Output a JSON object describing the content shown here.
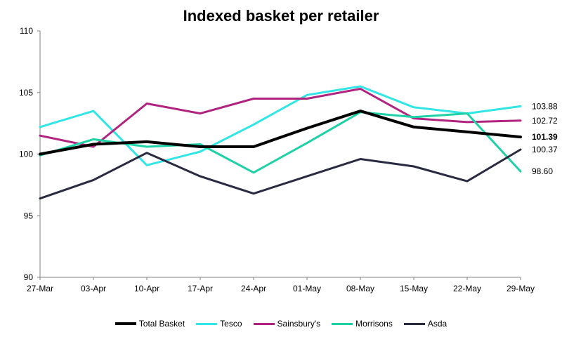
{
  "chart_data": {
    "type": "line",
    "title": "Indexed basket per retailer",
    "xlabel": "",
    "ylabel": "",
    "ylim": [
      90,
      110
    ],
    "yticks": [
      90,
      95,
      100,
      105,
      110
    ],
    "categories": [
      "27-Mar",
      "03-Apr",
      "10-Apr",
      "17-Apr",
      "24-Apr",
      "01-May",
      "08-May",
      "15-May",
      "22-May",
      "29-May"
    ],
    "grid": false,
    "legend": "bottom",
    "series": [
      {
        "name": "Total Basket",
        "color": "#000000",
        "bold": true,
        "values": [
          100.0,
          100.8,
          101.0,
          100.6,
          100.6,
          102.1,
          103.5,
          102.2,
          101.8,
          101.39
        ],
        "end_label": "101.39"
      },
      {
        "name": "Tesco",
        "color": "#33E6E6",
        "bold": false,
        "values": [
          102.2,
          103.5,
          99.1,
          100.2,
          102.4,
          104.8,
          105.5,
          103.8,
          103.3,
          103.88
        ],
        "end_label": "103.88"
      },
      {
        "name": "Sainsbury's",
        "color": "#B0237E",
        "bold": false,
        "values": [
          101.5,
          100.6,
          104.1,
          103.3,
          104.5,
          104.5,
          105.3,
          102.9,
          102.6,
          102.72
        ],
        "end_label": "102.72"
      },
      {
        "name": "Morrisons",
        "color": "#1FD1A6",
        "bold": false,
        "values": [
          99.9,
          101.2,
          100.6,
          100.8,
          98.5,
          100.9,
          103.4,
          103.0,
          103.3,
          98.6
        ],
        "end_label": "98.60"
      },
      {
        "name": "Asda",
        "color": "#2A2A40",
        "bold": false,
        "values": [
          96.4,
          97.9,
          100.1,
          98.2,
          96.8,
          98.2,
          99.6,
          99.0,
          97.8,
          100.37
        ],
        "end_label": "100.37"
      }
    ]
  }
}
